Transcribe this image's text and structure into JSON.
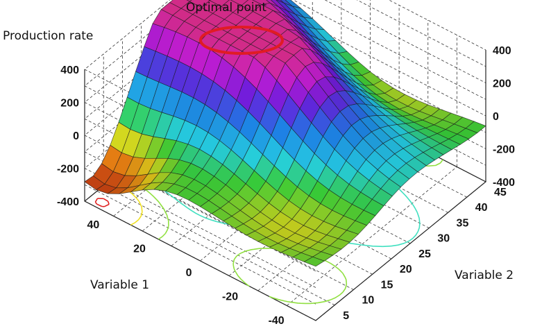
{
  "chart_data": {
    "type": "surface3d",
    "title": "",
    "zlabel": "Production rate",
    "xlabel": "Variable 1",
    "ylabel": "Variable 2",
    "annotation": "Optimal point",
    "x_ticks": [
      "40",
      "20",
      "0",
      "-20",
      "-40"
    ],
    "y_ticks": [
      "5",
      "10",
      "15",
      "20",
      "25",
      "30",
      "35",
      "40",
      "45"
    ],
    "z_ticks": [
      "400",
      "200",
      "0",
      "-200",
      "-400"
    ],
    "xlim": [
      -50,
      50
    ],
    "ylim": [
      0,
      45
    ],
    "zlim": [
      -400,
      400
    ],
    "grid": true,
    "colormap": "rainbow",
    "contours": true,
    "annotation_color": "#e01b24"
  }
}
